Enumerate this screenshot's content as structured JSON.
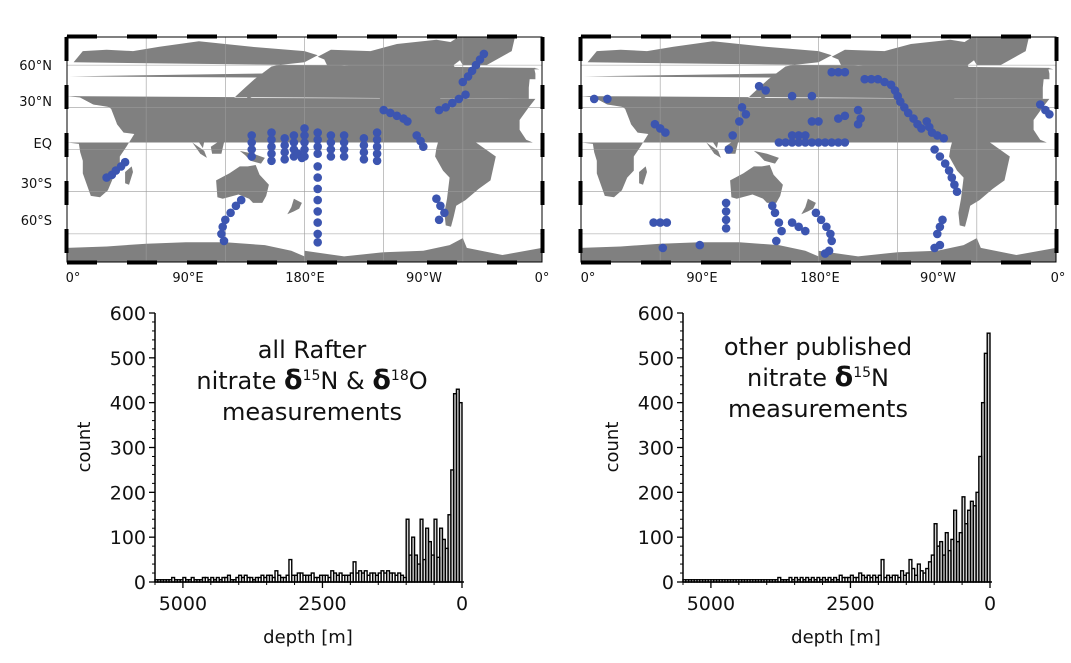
{
  "maps": [
    {
      "lat_ticks": [
        "60°N",
        "30°N",
        "EQ",
        "30°S",
        "60°S"
      ],
      "lon_ticks": [
        "0°",
        "90°E",
        "180°E",
        "90°W",
        "0°"
      ],
      "land_color": "#808080",
      "station_color": "#3c55b0",
      "stations": [
        [
          30,
          -20
        ],
        [
          34,
          -18
        ],
        [
          37,
          -15
        ],
        [
          41,
          -12
        ],
        [
          44,
          -9
        ],
        [
          132,
          -36
        ],
        [
          128,
          -40
        ],
        [
          124,
          -45
        ],
        [
          120,
          -50
        ],
        [
          118,
          -55
        ],
        [
          117,
          -60
        ],
        [
          119,
          -65
        ],
        [
          140,
          5
        ],
        [
          140,
          0
        ],
        [
          140,
          -5
        ],
        [
          140,
          10
        ],
        [
          155,
          12
        ],
        [
          155,
          7
        ],
        [
          155,
          2
        ],
        [
          155,
          -3
        ],
        [
          155,
          -8
        ],
        [
          165,
          8
        ],
        [
          165,
          3
        ],
        [
          165,
          -2
        ],
        [
          165,
          -7
        ],
        [
          172,
          10
        ],
        [
          172,
          5
        ],
        [
          172,
          0
        ],
        [
          172,
          -5
        ],
        [
          175,
          -3
        ],
        [
          178,
          -6
        ],
        [
          180,
          15
        ],
        [
          180,
          10
        ],
        [
          180,
          5
        ],
        [
          180,
          0
        ],
        [
          180,
          -5
        ],
        [
          190,
          12
        ],
        [
          190,
          7
        ],
        [
          190,
          2
        ],
        [
          190,
          -3
        ],
        [
          190,
          -12
        ],
        [
          190,
          -20
        ],
        [
          190,
          -28
        ],
        [
          190,
          -36
        ],
        [
          190,
          -44
        ],
        [
          190,
          -52
        ],
        [
          190,
          -60
        ],
        [
          190,
          -66
        ],
        [
          200,
          10
        ],
        [
          200,
          5
        ],
        [
          200,
          0
        ],
        [
          200,
          -5
        ],
        [
          210,
          10
        ],
        [
          210,
          5
        ],
        [
          210,
          0
        ],
        [
          210,
          -5
        ],
        [
          225,
          8
        ],
        [
          225,
          3
        ],
        [
          225,
          -2
        ],
        [
          225,
          -7
        ],
        [
          235,
          12
        ],
        [
          235,
          7
        ],
        [
          235,
          2
        ],
        [
          235,
          -3
        ],
        [
          235,
          -8
        ],
        [
          240,
          28
        ],
        [
          245,
          26
        ],
        [
          250,
          24
        ],
        [
          255,
          22
        ],
        [
          258,
          20
        ],
        [
          265,
          10
        ],
        [
          268,
          6
        ],
        [
          270,
          2
        ],
        [
          280,
          -35
        ],
        [
          283,
          -40
        ],
        [
          286,
          -45
        ],
        [
          282,
          -50
        ],
        [
          282,
          28
        ],
        [
          287,
          30
        ],
        [
          292,
          33
        ],
        [
          297,
          36
        ],
        [
          302,
          39
        ],
        [
          300,
          48
        ],
        [
          304,
          52
        ],
        [
          307,
          56
        ],
        [
          310,
          60
        ],
        [
          313,
          64
        ],
        [
          316,
          68
        ]
      ]
    },
    {
      "lat_ticks": [],
      "lon_ticks": [
        "0°",
        "90°E",
        "180°E",
        "90°W",
        "0°"
      ],
      "land_color": "#808080",
      "station_color": "#3c55b0",
      "stations": [
        [
          10,
          36
        ],
        [
          20,
          36
        ],
        [
          56,
          18
        ],
        [
          60,
          15
        ],
        [
          64,
          12
        ],
        [
          122,
          30
        ],
        [
          125,
          25
        ],
        [
          120,
          20
        ],
        [
          115,
          10
        ],
        [
          112,
          0
        ],
        [
          135,
          45
        ],
        [
          140,
          42
        ],
        [
          160,
          38
        ],
        [
          175,
          38
        ],
        [
          190,
          55
        ],
        [
          195,
          55
        ],
        [
          200,
          55
        ],
        [
          150,
          5
        ],
        [
          155,
          5
        ],
        [
          160,
          5
        ],
        [
          165,
          5
        ],
        [
          170,
          5
        ],
        [
          175,
          5
        ],
        [
          180,
          5
        ],
        [
          185,
          5
        ],
        [
          190,
          5
        ],
        [
          195,
          5
        ],
        [
          200,
          5
        ],
        [
          160,
          10
        ],
        [
          165,
          10
        ],
        [
          170,
          10
        ],
        [
          200,
          24
        ],
        [
          195,
          22
        ],
        [
          175,
          20
        ],
        [
          180,
          20
        ],
        [
          210,
          28
        ],
        [
          212,
          22
        ],
        [
          210,
          18
        ],
        [
          215,
          50
        ],
        [
          220,
          50
        ],
        [
          225,
          50
        ],
        [
          230,
          48
        ],
        [
          235,
          46
        ],
        [
          238,
          42
        ],
        [
          240,
          38
        ],
        [
          242,
          34
        ],
        [
          245,
          30
        ],
        [
          248,
          26
        ],
        [
          252,
          22
        ],
        [
          255,
          18
        ],
        [
          258,
          15
        ],
        [
          262,
          20
        ],
        [
          264,
          16
        ],
        [
          266,
          12
        ],
        [
          270,
          10
        ],
        [
          275,
          8
        ],
        [
          268,
          0
        ],
        [
          272,
          -5
        ],
        [
          276,
          -10
        ],
        [
          279,
          -15
        ],
        [
          281,
          -20
        ],
        [
          283,
          -25
        ],
        [
          285,
          -30
        ],
        [
          55,
          -52
        ],
        [
          60,
          -52
        ],
        [
          65,
          -52
        ],
        [
          62,
          -70
        ],
        [
          90,
          -68
        ],
        [
          110,
          -38
        ],
        [
          110,
          -44
        ],
        [
          110,
          -50
        ],
        [
          110,
          -56
        ],
        [
          145,
          -40
        ],
        [
          147,
          -45
        ],
        [
          150,
          -52
        ],
        [
          152,
          -58
        ],
        [
          148,
          -65
        ],
        [
          160,
          -52
        ],
        [
          165,
          -55
        ],
        [
          170,
          -58
        ],
        [
          178,
          -45
        ],
        [
          182,
          -50
        ],
        [
          186,
          -55
        ],
        [
          189,
          -60
        ],
        [
          190,
          -65
        ],
        [
          188,
          -72
        ],
        [
          185,
          -74
        ],
        [
          270,
          -60
        ],
        [
          272,
          -55
        ],
        [
          274,
          -50
        ],
        [
          272,
          -68
        ],
        [
          268,
          -70
        ],
        [
          348,
          32
        ],
        [
          352,
          28
        ],
        [
          355,
          25
        ]
      ]
    }
  ],
  "chart_data": [
    {
      "type": "bar",
      "title": "",
      "annotation": [
        "all Rafter",
        "nitrate δ15N & δ18O",
        "measurements"
      ],
      "xlabel": "depth [m]",
      "ylabel": "count",
      "x_ticks": [
        "5000",
        "2500",
        "0"
      ],
      "y_ticks": [
        "0",
        "100",
        "200",
        "300",
        "400",
        "500",
        "600"
      ],
      "xlim": [
        5500,
        0
      ],
      "ylim": [
        0,
        600
      ],
      "bin_width": 50,
      "bin_start": 0,
      "values": [
        400,
        430,
        420,
        250,
        150,
        75,
        95,
        120,
        55,
        140,
        60,
        90,
        120,
        50,
        140,
        40,
        60,
        100,
        60,
        140,
        10,
        15,
        20,
        15,
        20,
        20,
        25,
        20,
        25,
        20,
        15,
        20,
        20,
        15,
        25,
        20,
        25,
        20,
        45,
        20,
        15,
        15,
        15,
        20,
        15,
        20,
        25,
        10,
        15,
        15,
        15,
        10,
        10,
        20,
        15,
        15,
        15,
        20,
        20,
        15,
        15,
        50,
        15,
        10,
        10,
        15,
        25,
        10,
        15,
        15,
        10,
        15,
        10,
        10,
        5,
        10,
        10,
        15,
        10,
        15,
        10,
        5,
        5,
        15,
        10,
        10,
        5,
        10,
        5,
        10,
        5,
        10,
        10,
        5,
        5,
        5,
        10,
        5,
        5,
        10,
        5,
        5,
        5,
        10,
        5,
        5,
        5,
        5,
        5,
        5
      ],
      "bar_color": "#d3d3d3"
    },
    {
      "type": "bar",
      "title": "",
      "annotation": [
        "other published",
        "nitrate δ15N",
        "measurements"
      ],
      "xlabel": "depth [m]",
      "ylabel": "count",
      "x_ticks": [
        "5000",
        "2500",
        "0"
      ],
      "y_ticks": [
        "0",
        "100",
        "200",
        "300",
        "400",
        "500",
        "600"
      ],
      "xlim": [
        5500,
        0
      ],
      "ylim": [
        0,
        600
      ],
      "bin_width": 50,
      "bin_start": 0,
      "values": [
        555,
        510,
        400,
        280,
        200,
        170,
        180,
        160,
        130,
        190,
        110,
        90,
        160,
        95,
        70,
        110,
        60,
        90,
        80,
        130,
        60,
        45,
        30,
        20,
        25,
        40,
        15,
        30,
        50,
        20,
        15,
        25,
        10,
        15,
        15,
        10,
        15,
        10,
        50,
        15,
        10,
        15,
        10,
        15,
        10,
        15,
        20,
        10,
        10,
        15,
        10,
        10,
        10,
        15,
        5,
        10,
        5,
        10,
        5,
        10,
        5,
        10,
        5,
        10,
        5,
        10,
        5,
        10,
        5,
        10,
        5,
        10,
        5,
        5,
        5,
        10,
        5,
        5,
        5,
        5,
        5,
        5,
        5,
        5,
        5,
        5,
        5,
        5,
        5,
        5,
        5,
        5,
        5,
        5,
        5,
        5,
        5,
        5,
        5,
        5,
        5,
        5,
        5,
        5,
        5,
        5,
        5,
        5,
        5,
        5
      ],
      "bar_color": "#d3d3d3"
    }
  ]
}
